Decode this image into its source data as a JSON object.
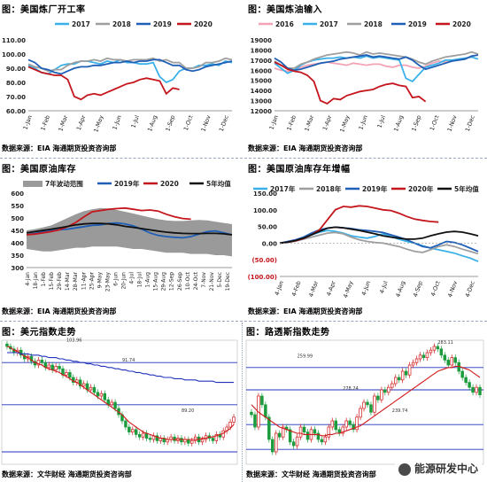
{
  "colors": {
    "y2016": "#f4a3b6",
    "y2017": "#3ab0e8",
    "y2018": "#9e9e9e",
    "y2019": "#1f5fb6",
    "y2020": "#c4161c",
    "avg5": "#111111",
    "band": "#9a9a9a",
    "bull": "#1a9c3c",
    "bear": "#d11a1a",
    "ma_red": "#d11a1a",
    "ma_blue": "#2233bb",
    "hline": "#2233bb"
  },
  "source": "数据来源：EIA    海通期货投资咨询部",
  "source_candles": "数据来源：文华财经    海通期货投资咨询部",
  "watermark": "能源研发中心",
  "chart_data": [
    {
      "id": "refinery",
      "title": "图：美国炼厂开工率",
      "type": "line",
      "ylim": [
        60,
        110
      ],
      "yticks": [
        "110.00",
        "100.00",
        "90.00",
        "80.00",
        "70.00",
        "60.00"
      ],
      "xticks": [
        "1-Jan",
        "1-Feb",
        "1-Mar",
        "1-Apr",
        "1-May",
        "1-Jun",
        "1-Jul",
        "1-Aug",
        "1-Sep",
        "1-Oct",
        "1-Nov",
        "1-Dec"
      ],
      "series": [
        {
          "name": "2017",
          "color_key": "y2017",
          "values": [
            92,
            90,
            87,
            86,
            89,
            92,
            93,
            93,
            95,
            95,
            94,
            93,
            95,
            94,
            96,
            94,
            94,
            93,
            93,
            94,
            84,
            80,
            82,
            88,
            90,
            90,
            92,
            92,
            93,
            92,
            95,
            94
          ]
        },
        {
          "name": "2018",
          "color_key": "y2018",
          "values": [
            93,
            91,
            90,
            88,
            89,
            89,
            92,
            94,
            95,
            95,
            96,
            95,
            97,
            96,
            96,
            95,
            96,
            96,
            96,
            97,
            95,
            96,
            94,
            94,
            90,
            90,
            91,
            94,
            94,
            95,
            97,
            96
          ]
        },
        {
          "name": "2019",
          "color_key": "y2019",
          "values": [
            96,
            94,
            90,
            89,
            87,
            86,
            88,
            90,
            91,
            91,
            92,
            92,
            93,
            94,
            94,
            95,
            94,
            95,
            95,
            96,
            96,
            94,
            92,
            92,
            89,
            88,
            89,
            91,
            92,
            93,
            94,
            95
          ]
        },
        {
          "name": "2020",
          "color_key": "y2020",
          "values": [
            91,
            89,
            87,
            86,
            85,
            85,
            82,
            70,
            68,
            71,
            72,
            71,
            73,
            75,
            77,
            79,
            80,
            82,
            83,
            82,
            81,
            72,
            76,
            75
          ]
        }
      ]
    },
    {
      "id": "crude_input",
      "title": "图：美国炼油输入",
      "type": "line",
      "ylim": [
        12000,
        19000
      ],
      "yticks": [
        "19000",
        "18000",
        "17000",
        "16000",
        "15000",
        "14000",
        "13000",
        "12000"
      ],
      "xticks": [
        "1-Jan",
        "1-Feb",
        "1-Mar",
        "1-Apr",
        "1-May",
        "1-Jun",
        "1-Jul",
        "1-Aug",
        "1-Sep",
        "1-Oct",
        "1-Nov",
        "1-Dec"
      ],
      "series": [
        {
          "name": "2016",
          "color_key": "y2016",
          "values": [
            16200,
            16000,
            15900,
            16000,
            16300,
            16500,
            16600,
            16700,
            16800,
            16700,
            16600,
            16500,
            16700,
            16600,
            16500,
            16600,
            16600,
            16400,
            16300,
            16500,
            16500,
            16300,
            16200,
            16400,
            16700,
            16900,
            16800,
            16900
          ]
        },
        {
          "name": "2017",
          "color_key": "y2017",
          "values": [
            16700,
            16200,
            15700,
            16000,
            16500,
            16800,
            17000,
            17100,
            17200,
            17200,
            17300,
            17200,
            17300,
            17200,
            17400,
            17200,
            17300,
            17200,
            17100,
            17000,
            15200,
            14900,
            15600,
            16300,
            16500,
            16700,
            17000,
            17000,
            17100,
            17200,
            17300,
            17100
          ]
        },
        {
          "name": "2018",
          "color_key": "y2018",
          "values": [
            16900,
            16500,
            16200,
            16200,
            16600,
            16800,
            17100,
            17300,
            17500,
            17600,
            17700,
            17800,
            17700,
            17500,
            17800,
            17600,
            17700,
            17600,
            17500,
            17400,
            17300,
            17100,
            16800,
            16600,
            16900,
            17100,
            17300,
            17400,
            17500,
            17600,
            17800,
            17600
          ]
        },
        {
          "name": "2019",
          "color_key": "y2019",
          "values": [
            17200,
            16800,
            16200,
            16000,
            16100,
            16300,
            16500,
            16700,
            16800,
            16900,
            17100,
            17200,
            17300,
            17400,
            17500,
            17300,
            17400,
            17300,
            17200,
            17100,
            17300,
            17000,
            16500,
            16100,
            16300,
            16500,
            16700,
            16900,
            17000,
            17100,
            17400,
            17500
          ]
        },
        {
          "name": "2020",
          "color_key": "y2020",
          "values": [
            16800,
            16500,
            16100,
            15900,
            15800,
            15500,
            14900,
            13000,
            12700,
            13200,
            13100,
            13500,
            13700,
            13900,
            14000,
            14100,
            14400,
            14600,
            14700,
            14500,
            14400,
            13300,
            13400,
            12900
          ]
        }
      ]
    },
    {
      "id": "crude_stock",
      "title": "图：美国原油库存",
      "type": "area",
      "ylim": [
        300,
        600
      ],
      "yticks": [
        "600",
        "550",
        "500",
        "450",
        "400",
        "350",
        "300"
      ],
      "xticks": [
        "4-Jan",
        "18-Jan",
        "1-Feb",
        "15-Feb",
        "29-Feb",
        "14-Mar",
        "28-Mar",
        "11-Apr",
        "25-Apr",
        "9-May",
        "23-May",
        "6-Jun",
        "20-Jun",
        "4-Jul",
        "18-Jul",
        "1-Aug",
        "15-Aug",
        "29-Aug",
        "12-Sep",
        "26-Sep",
        "10-Oct",
        "24-Oct",
        "7-Nov",
        "21-Nov",
        "5-Dec",
        "19-Dec"
      ],
      "band_name": "7年波动范围",
      "band_low": [
        375,
        370,
        365,
        365,
        370,
        375,
        380,
        380,
        385,
        385,
        385,
        385,
        380,
        375,
        375,
        370,
        365,
        360,
        360,
        360,
        355,
        355,
        355,
        350,
        350,
        345
      ],
      "band_high": [
        450,
        455,
        462,
        470,
        485,
        500,
        515,
        528,
        535,
        540,
        538,
        532,
        525,
        518,
        510,
        502,
        495,
        490,
        488,
        488,
        490,
        492,
        490,
        485,
        480,
        475
      ],
      "series": [
        {
          "name": "2019年",
          "color_key": "y2019",
          "values": [
            432,
            438,
            445,
            450,
            452,
            455,
            460,
            465,
            470,
            472,
            478,
            480,
            476,
            468,
            455,
            440,
            430,
            425,
            422,
            420,
            425,
            435,
            445,
            448,
            440,
            432
          ]
        },
        {
          "name": "2020",
          "color_key": "y2020",
          "values": [
            432,
            435,
            440,
            445,
            452,
            465,
            482,
            505,
            525,
            530,
            535,
            538,
            540,
            535,
            530,
            532,
            528,
            515,
            505,
            498,
            495
          ]
        },
        {
          "name": "5年均值",
          "color_key": "avg5",
          "values": [
            440,
            445,
            450,
            455,
            460,
            466,
            472,
            476,
            478,
            478,
            476,
            472,
            466,
            462,
            457,
            452,
            447,
            443,
            440,
            438,
            437,
            437,
            438,
            438,
            436,
            432
          ]
        }
      ]
    },
    {
      "id": "stock_yoy",
      "title": "图：美国原油库存年增幅",
      "type": "line",
      "ylim": [
        -100,
        150
      ],
      "yticks": [
        "150.00",
        "100.00",
        "50.00",
        "0.00",
        "(50.00)",
        "(100.00)"
      ],
      "xticks": [
        "4-Jan",
        "4-Feb",
        "4-Mar",
        "4-Apr",
        "4-May",
        "4-Jun",
        "4-Jul",
        "4-Aug",
        "4-Sep",
        "4-Oct",
        "4-Nov",
        "4-Dec"
      ],
      "series": [
        {
          "name": "2017年",
          "color_key": "y2017",
          "values": [
            0,
            3,
            8,
            15,
            25,
            33,
            38,
            35,
            30,
            22,
            18,
            15,
            20,
            28,
            20,
            12,
            5,
            0,
            -8,
            -15,
            -20,
            -25,
            -30,
            -38,
            -45,
            -55
          ]
        },
        {
          "name": "2018年",
          "color_key": "y2018",
          "values": [
            0,
            2,
            6,
            12,
            18,
            24,
            30,
            32,
            28,
            18,
            10,
            5,
            2,
            0,
            -5,
            -10,
            -18,
            -25,
            -28,
            -20,
            -10,
            -5,
            -10,
            -18,
            -25,
            -32
          ]
        },
        {
          "name": "2019年",
          "color_key": "y2019",
          "values": [
            0,
            5,
            10,
            18,
            30,
            40,
            45,
            48,
            46,
            44,
            40,
            38,
            35,
            32,
            25,
            18,
            10,
            0,
            -10,
            -14,
            -5,
            5,
            2,
            -5,
            -15,
            -25
          ]
        },
        {
          "name": "2020年",
          "color_key": "y2020",
          "values": [
            0,
            3,
            7,
            14,
            25,
            40,
            70,
            100,
            110,
            108,
            112,
            110,
            105,
            100,
            98,
            90,
            80,
            72,
            68,
            65,
            63
          ]
        },
        {
          "name": "5年均值",
          "color_key": "avg5",
          "values": [
            0,
            3,
            8,
            15,
            25,
            35,
            45,
            48,
            46,
            42,
            38,
            33,
            28,
            22,
            18,
            15,
            12,
            12,
            15,
            22,
            28,
            33,
            35,
            33,
            28,
            22
          ]
        }
      ]
    },
    {
      "id": "usd_index",
      "title": "图：美元指数走势",
      "type": "candlestick",
      "ylim": [
        0,
        100
      ],
      "labels": [
        "103.96",
        "91.74",
        "89.20"
      ],
      "closes": [
        95,
        93,
        90,
        92,
        88,
        85,
        87,
        83,
        80,
        84,
        82,
        78,
        80,
        76,
        79,
        77,
        72,
        74,
        70,
        66,
        68,
        63,
        65,
        60,
        62,
        58,
        55,
        57,
        52,
        48,
        50,
        45,
        40,
        35,
        30,
        26,
        28,
        24,
        22,
        25,
        21,
        20,
        23,
        19,
        21,
        18,
        20,
        22,
        19,
        21,
        18,
        20,
        17,
        19,
        22,
        18,
        20,
        23,
        21,
        19,
        24,
        22,
        27,
        30,
        34,
        38
      ],
      "ma_red": [
        95,
        94,
        92,
        91,
        89,
        87,
        86,
        84,
        82,
        81,
        80,
        78,
        77,
        76,
        75,
        74,
        72,
        71,
        69,
        67,
        66,
        64,
        62,
        60,
        58,
        56,
        54,
        52,
        50,
        48,
        46,
        44,
        42,
        40,
        37,
        34,
        32,
        30,
        28,
        26,
        25,
        24,
        23,
        22,
        21,
        21,
        20,
        20,
        20,
        20,
        20,
        20,
        20,
        20,
        20,
        20,
        21,
        21,
        22,
        22,
        23,
        24,
        25,
        27,
        29,
        32
      ],
      "ma_blue": [
        90,
        90,
        90,
        90,
        89,
        89,
        89,
        88,
        88,
        88,
        87,
        87,
        86,
        86,
        86,
        85,
        85,
        84,
        84,
        83,
        83,
        82,
        82,
        81,
        81,
        80,
        80,
        79,
        79,
        78,
        78,
        77,
        77,
        76,
        76,
        75,
        75,
        74,
        74,
        73,
        73,
        72,
        72,
        71,
        71,
        70,
        70,
        70,
        69,
        69,
        69,
        68,
        68,
        68,
        68,
        67,
        67,
        67,
        67,
        67,
        66,
        66,
        66,
        66,
        66,
        66
      ],
      "hlines": [
        82,
        48,
        10
      ],
      "label_positions": [
        99,
        83,
        42
      ]
    },
    {
      "id": "reuters_crb",
      "title": "图：路透斯指数走势",
      "type": "candlestick",
      "ylim": [
        0,
        100
      ],
      "labels": [
        "259.99",
        "278.24",
        "239.74",
        "283.11"
      ],
      "closes": [
        40,
        30,
        55,
        48,
        38,
        20,
        10,
        25,
        22,
        30,
        28,
        18,
        15,
        22,
        30,
        26,
        20,
        28,
        25,
        20,
        18,
        22,
        30,
        35,
        28,
        25,
        30,
        35,
        32,
        28,
        38,
        45,
        50,
        48,
        42,
        55,
        52,
        60,
        58,
        62,
        65,
        70,
        68,
        75,
        72,
        80,
        82,
        85,
        88,
        86,
        90,
        92,
        95,
        93,
        88,
        84,
        80,
        86,
        82,
        75,
        70,
        66,
        62,
        58,
        62,
        56
      ],
      "ma_red": [
        48,
        45,
        42,
        40,
        38,
        36,
        34,
        32,
        30,
        29,
        28,
        27,
        26,
        25,
        25,
        24,
        24,
        24,
        24,
        24,
        23,
        23,
        24,
        24,
        25,
        25,
        26,
        27,
        28,
        29,
        30,
        31,
        33,
        35,
        37,
        39,
        41,
        43,
        45,
        47,
        49,
        51,
        53,
        55,
        57,
        59,
        61,
        63,
        65,
        67,
        69,
        71,
        73,
        75,
        76,
        77,
        78,
        78,
        79,
        79,
        78,
        77,
        76,
        74,
        72,
        70
      ],
      "hlines": [
        78,
        60,
        32,
        12
      ],
      "label_positions": [
        86,
        60,
        42,
        97
      ]
    }
  ]
}
